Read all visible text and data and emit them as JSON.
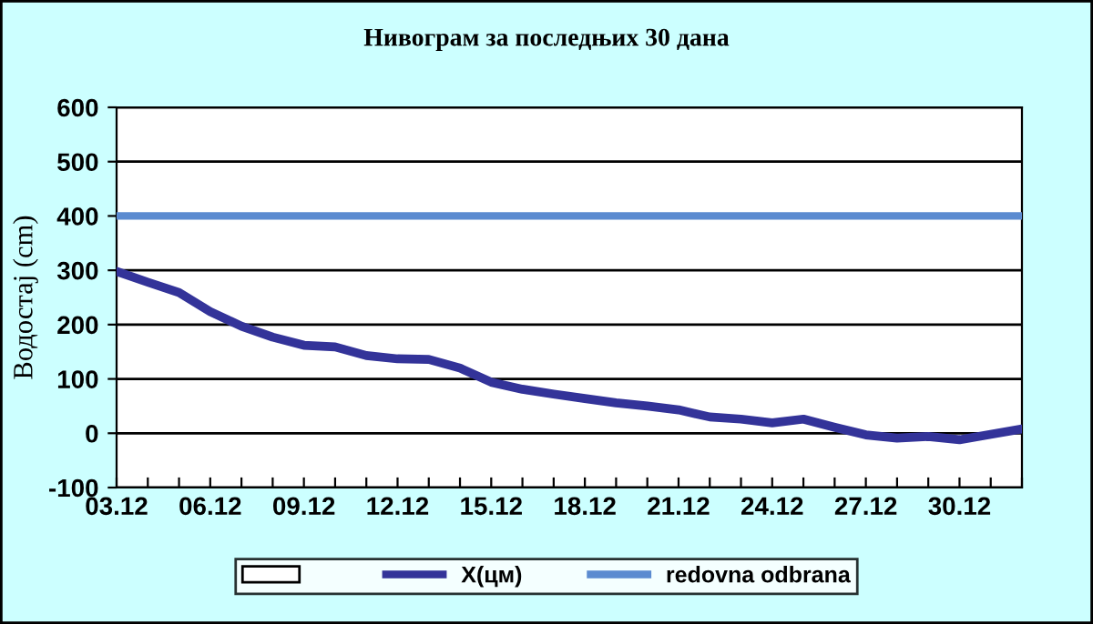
{
  "chart_data": {
    "type": "line",
    "title": "Нивограм за последњих 30 дана",
    "ylabel": "Водостај (cm)",
    "categories": [
      "03.12",
      null,
      null,
      "06.12",
      null,
      null,
      "09.12",
      null,
      null,
      "12.12",
      null,
      null,
      "15.12",
      null,
      null,
      "18.12",
      null,
      null,
      "21.12",
      null,
      null,
      "24.12",
      null,
      null,
      "27.12",
      null,
      null,
      "30.12",
      null,
      null
    ],
    "series": [
      {
        "name": "X(цм)",
        "color": "#333399",
        "values": [
          298,
          278,
          259,
          224,
          197,
          177,
          162,
          159,
          143,
          137,
          136,
          120,
          94,
          81,
          72,
          64,
          56,
          50,
          43,
          30,
          26,
          19,
          26,
          11,
          -3,
          -9,
          -6,
          -12,
          -2,
          8
        ]
      }
    ],
    "ref_lines": [
      {
        "axis": "y",
        "value": 400,
        "label": "redovna odbrana",
        "color": "#5b8bd0"
      }
    ],
    "ylim": [
      -100,
      600
    ],
    "yticks": [
      -100,
      0,
      100,
      200,
      300,
      400,
      500,
      600
    ],
    "grid": "y",
    "legend": "bottom",
    "marker": "none",
    "line_style": "solid"
  }
}
